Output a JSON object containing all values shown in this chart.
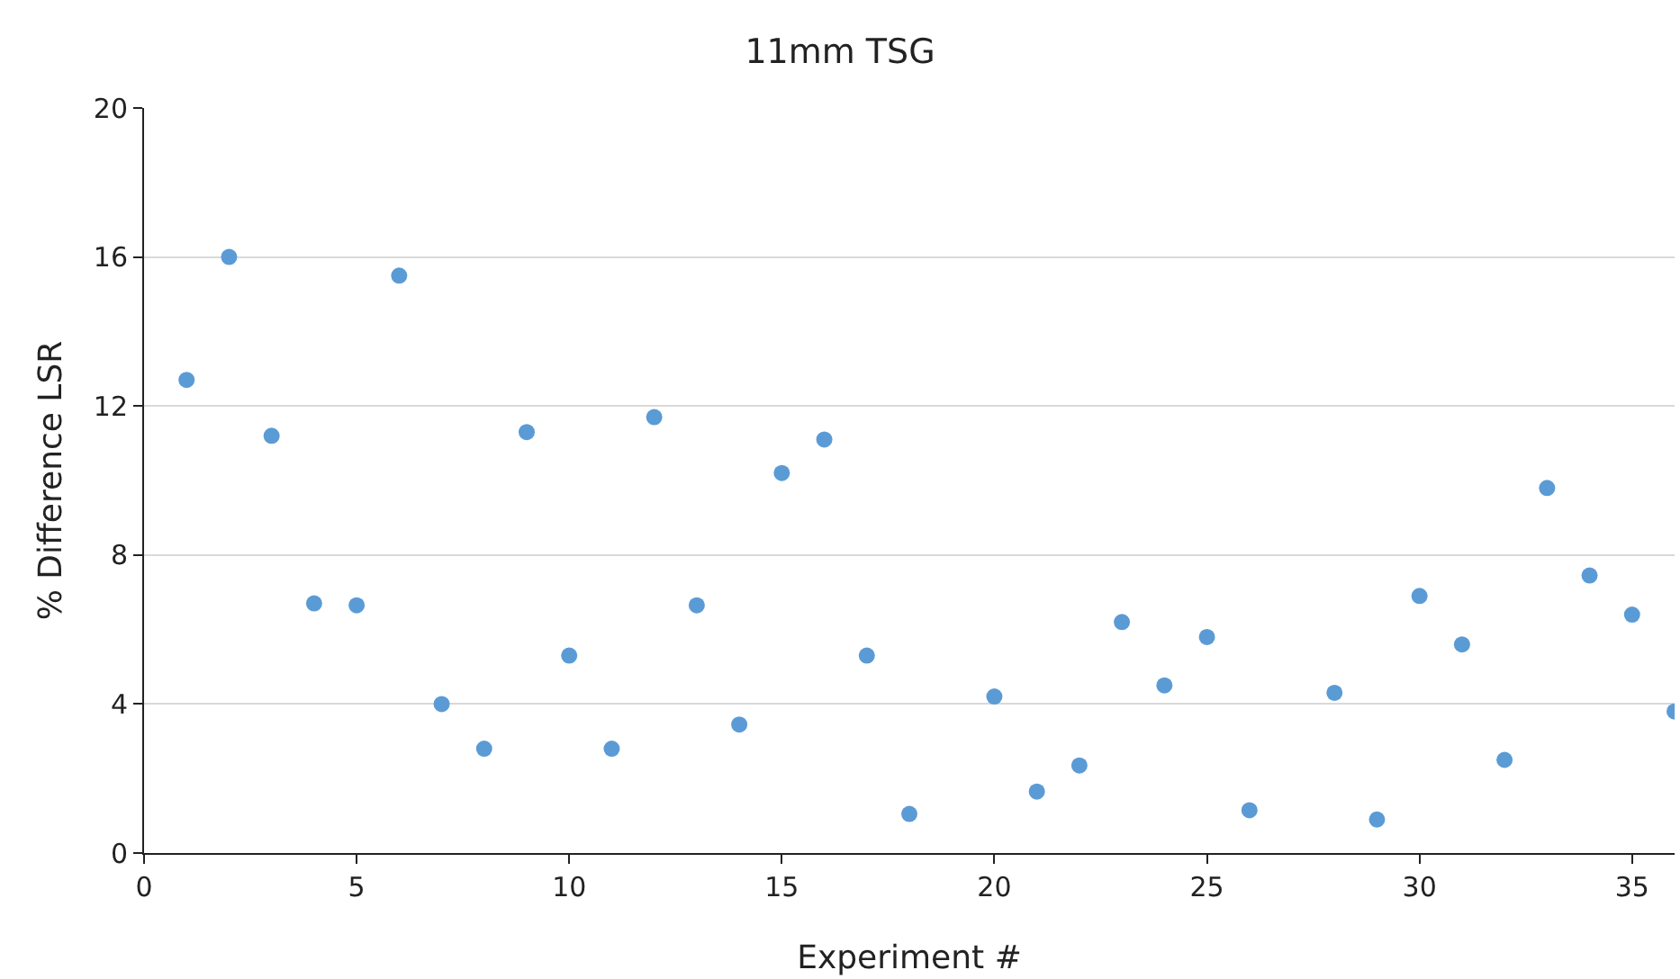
{
  "chart_data": {
    "type": "scatter",
    "title": "11mm TSG",
    "xlabel": "Experiment #",
    "ylabel": "% Difference LSR",
    "x": [
      1,
      2,
      3,
      4,
      5,
      6,
      7,
      8,
      9,
      10,
      11,
      12,
      13,
      14,
      15,
      16,
      17,
      18,
      20,
      21,
      22,
      23,
      24,
      25,
      26,
      28,
      29,
      30,
      31,
      32,
      33,
      34,
      35,
      36
    ],
    "series": [
      {
        "color": "#5b9bd5",
        "values": [
          12.7,
          16.0,
          11.2,
          6.7,
          6.65,
          15.5,
          4.0,
          2.8,
          11.3,
          5.3,
          2.8,
          11.7,
          6.65,
          3.45,
          10.2,
          11.1,
          5.3,
          1.05,
          4.2,
          1.65,
          2.35,
          6.2,
          4.5,
          5.8,
          1.15,
          4.3,
          0.9,
          6.9,
          5.6,
          2.5,
          9.8,
          7.45,
          6.4,
          3.8
        ]
      }
    ],
    "xlim": [
      0,
      36
    ],
    "xticks": [
      0,
      5,
      10,
      15,
      20,
      25,
      30,
      35
    ],
    "ylim": [
      0,
      20
    ],
    "yticks": [
      0,
      4,
      8,
      12,
      16,
      20
    ],
    "grid": "y",
    "marker": "circle"
  }
}
